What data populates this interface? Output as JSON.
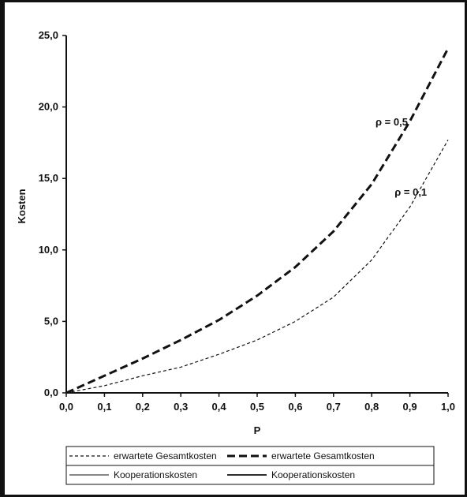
{
  "chart_data": {
    "type": "line",
    "title": "",
    "xlabel": "P",
    "ylabel": "Kosten",
    "xlim": [
      0,
      1
    ],
    "ylim": [
      0,
      25
    ],
    "x_ticks": [
      "0,0",
      "0,1",
      "0,2",
      "0,3",
      "0,4",
      "0,5",
      "0,6",
      "0,7",
      "0,8",
      "0,9",
      "1,0"
    ],
    "y_ticks": [
      "0,0",
      "5,0",
      "10,0",
      "15,0",
      "20,0",
      "25,0"
    ],
    "x": [
      0,
      0.1,
      0.2,
      0.3,
      0.4,
      0.5,
      0.6,
      0.7,
      0.8,
      0.9,
      1.0
    ],
    "series": [
      {
        "name": "erwartete Gesamtkosten",
        "style": "dashed-thin",
        "values": [
          0,
          0.5,
          1.2,
          1.8,
          2.7,
          3.7,
          5.0,
          6.7,
          9.3,
          13.0,
          17.7
        ]
      },
      {
        "name": "erwartete Gesamtkosten",
        "style": "dashed-thick",
        "values": [
          0,
          1.2,
          2.4,
          3.7,
          5.1,
          6.8,
          8.8,
          11.3,
          14.6,
          19.0,
          24.1
        ]
      }
    ],
    "annotations": [
      {
        "text": "ρ = 0,5",
        "x": 0.81,
        "y": 18.7
      },
      {
        "text": "ρ = 0,1",
        "x": 0.86,
        "y": 13.8
      }
    ],
    "legend": {
      "placement": "bottom",
      "entries": [
        {
          "label": "erwartete Gesamtkosten",
          "style": "dashed-thin"
        },
        {
          "label": "erwartete Gesamtkosten",
          "style": "dashed-thick"
        },
        {
          "label": "Kooperationskosten",
          "style": "solid-thin"
        },
        {
          "label": "Kooperationskosten",
          "style": "solid-thick"
        }
      ]
    },
    "grid": false
  }
}
